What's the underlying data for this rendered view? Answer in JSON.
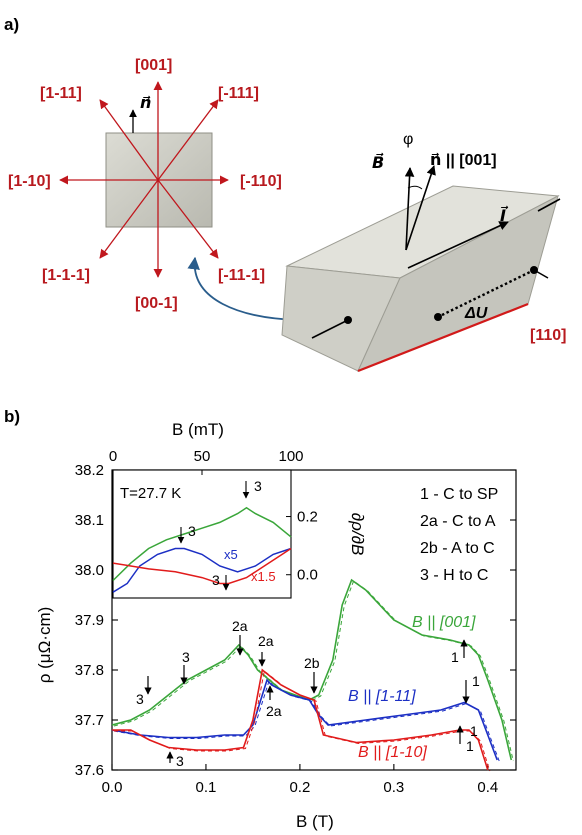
{
  "panel_a": {
    "label": "a)",
    "square": {
      "normal_label": "n⃗",
      "directions": [
        "[001]",
        "[-111]",
        "[-110]",
        "[-11-1]",
        "[00-1]",
        "[1-1-1]",
        "[1-10]",
        "[1-11]"
      ]
    },
    "block": {
      "field_label": "B⃗",
      "angle_label": "φ",
      "normal_label": "n⃗ || [001]",
      "current_label": "I⃗",
      "voltage_label": "ΔU",
      "edge_label": "[110]"
    },
    "colors": {
      "direction_red": "#c0171d",
      "block_face": "#d6d6cf",
      "arrow_blue": "#2a5d8c"
    }
  },
  "panel_b": {
    "label": "b)",
    "legend": [
      "1 - C to SP",
      "2a - C to A",
      "2b - A to C",
      "3 - H to C"
    ],
    "series_labels": [
      {
        "text": "B || [001]",
        "color": "#3aa63a"
      },
      {
        "text": "B || [1-11]",
        "color": "#1c2fc4"
      },
      {
        "text": "B || [1-10]",
        "color": "#e11b1b"
      }
    ],
    "annotations": [
      "1",
      "1",
      "1",
      "1",
      "2a",
      "2a",
      "2a",
      "2b",
      "3",
      "3",
      "3"
    ],
    "inset": {
      "temperature": "T=27.7 K",
      "blue_scale": "x5",
      "red_scale": "x1.5",
      "marks": [
        "3",
        "3",
        "3"
      ]
    }
  },
  "chart_data": [
    {
      "type": "line",
      "title": "",
      "xlabel": "B (T)",
      "ylabel": "ρ (μΩ·cm)",
      "xlim": [
        0.0,
        0.43
      ],
      "ylim": [
        37.6,
        38.2
      ],
      "x_ticks": [
        "0.0",
        "0.1",
        "0.2",
        "0.3",
        "0.4"
      ],
      "y_ticks": [
        "37.6",
        "37.7",
        "37.8",
        "37.9",
        "38.0",
        "38.1",
        "38.2"
      ],
      "series": [
        {
          "name": "B || [001]",
          "color": "#3aa63a",
          "points": [
            [
              0,
              37.69
            ],
            [
              0.02,
              37.7
            ],
            [
              0.04,
              37.72
            ],
            [
              0.06,
              37.75
            ],
            [
              0.08,
              37.78
            ],
            [
              0.1,
              37.8
            ],
            [
              0.12,
              37.82
            ],
            [
              0.135,
              37.85
            ],
            [
              0.145,
              37.83
            ],
            [
              0.155,
              37.8
            ],
            [
              0.18,
              37.76
            ],
            [
              0.21,
              37.74
            ],
            [
              0.22,
              37.75
            ],
            [
              0.235,
              37.82
            ],
            [
              0.245,
              37.93
            ],
            [
              0.255,
              37.98
            ],
            [
              0.27,
              37.96
            ],
            [
              0.3,
              37.9
            ],
            [
              0.33,
              37.87
            ],
            [
              0.36,
              37.86
            ],
            [
              0.38,
              37.85
            ],
            [
              0.39,
              37.83
            ],
            [
              0.4,
              37.78
            ],
            [
              0.415,
              37.7
            ],
            [
              0.425,
              37.62
            ]
          ]
        },
        {
          "name": "B || [1-11]",
          "color": "#1c2fc4",
          "points": [
            [
              0,
              37.68
            ],
            [
              0.03,
              37.67
            ],
            [
              0.06,
              37.665
            ],
            [
              0.09,
              37.665
            ],
            [
              0.12,
              37.67
            ],
            [
              0.14,
              37.67
            ],
            [
              0.15,
              37.69
            ],
            [
              0.16,
              37.75
            ],
            [
              0.165,
              37.78
            ],
            [
              0.17,
              37.77
            ],
            [
              0.19,
              37.75
            ],
            [
              0.21,
              37.74
            ],
            [
              0.22,
              37.71
            ],
            [
              0.23,
              37.69
            ],
            [
              0.27,
              37.7
            ],
            [
              0.31,
              37.71
            ],
            [
              0.35,
              37.72
            ],
            [
              0.375,
              37.735
            ],
            [
              0.39,
              37.72
            ],
            [
              0.4,
              37.67
            ],
            [
              0.41,
              37.62
            ]
          ]
        },
        {
          "name": "B || [1-10]",
          "color": "#e11b1b",
          "points": [
            [
              0,
              37.68
            ],
            [
              0.02,
              37.68
            ],
            [
              0.04,
              37.66
            ],
            [
              0.06,
              37.645
            ],
            [
              0.09,
              37.64
            ],
            [
              0.12,
              37.64
            ],
            [
              0.14,
              37.645
            ],
            [
              0.15,
              37.7
            ],
            [
              0.16,
              37.8
            ],
            [
              0.18,
              37.77
            ],
            [
              0.2,
              37.75
            ],
            [
              0.215,
              37.74
            ],
            [
              0.225,
              37.67
            ],
            [
              0.26,
              37.655
            ],
            [
              0.3,
              37.66
            ],
            [
              0.34,
              37.67
            ],
            [
              0.37,
              37.68
            ],
            [
              0.38,
              37.68
            ],
            [
              0.39,
              37.66
            ],
            [
              0.4,
              37.6
            ]
          ]
        }
      ]
    },
    {
      "type": "line",
      "title": "",
      "xlabel": "B (mT)",
      "ylabel": "∂ρ/∂B",
      "xlim": [
        0,
        100
      ],
      "ylim": [
        -0.08,
        0.36
      ],
      "x_ticks": [
        "0",
        "50",
        "100"
      ],
      "y_ticks": [
        "0.0",
        "0.2"
      ],
      "series": [
        {
          "color": "#3aa63a",
          "points": [
            [
              0,
              -0.02
            ],
            [
              10,
              0.04
            ],
            [
              20,
              0.09
            ],
            [
              30,
              0.12
            ],
            [
              40,
              0.14
            ],
            [
              50,
              0.16
            ],
            [
              60,
              0.18
            ],
            [
              70,
              0.21
            ],
            [
              75,
              0.23
            ],
            [
              80,
              0.21
            ],
            [
              90,
              0.18
            ],
            [
              100,
              0.13
            ]
          ]
        },
        {
          "color": "#1c2fc4",
          "points": [
            [
              0,
              -0.06
            ],
            [
              8,
              -0.03
            ],
            [
              15,
              0.03
            ],
            [
              25,
              0.07
            ],
            [
              35,
              0.09
            ],
            [
              40,
              0.09
            ],
            [
              50,
              0.07
            ],
            [
              60,
              0.03
            ],
            [
              70,
              0.01
            ],
            [
              80,
              0.03
            ],
            [
              90,
              0.07
            ],
            [
              100,
              0.09
            ]
          ]
        },
        {
          "color": "#e11b1b",
          "points": [
            [
              0,
              0.04
            ],
            [
              10,
              0.03
            ],
            [
              20,
              0.02
            ],
            [
              35,
              0.01
            ],
            [
              50,
              -0.01
            ],
            [
              60,
              -0.03
            ],
            [
              65,
              -0.03
            ],
            [
              75,
              -0.01
            ],
            [
              85,
              0.03
            ],
            [
              95,
              0.07
            ],
            [
              100,
              0.09
            ]
          ]
        }
      ]
    }
  ]
}
